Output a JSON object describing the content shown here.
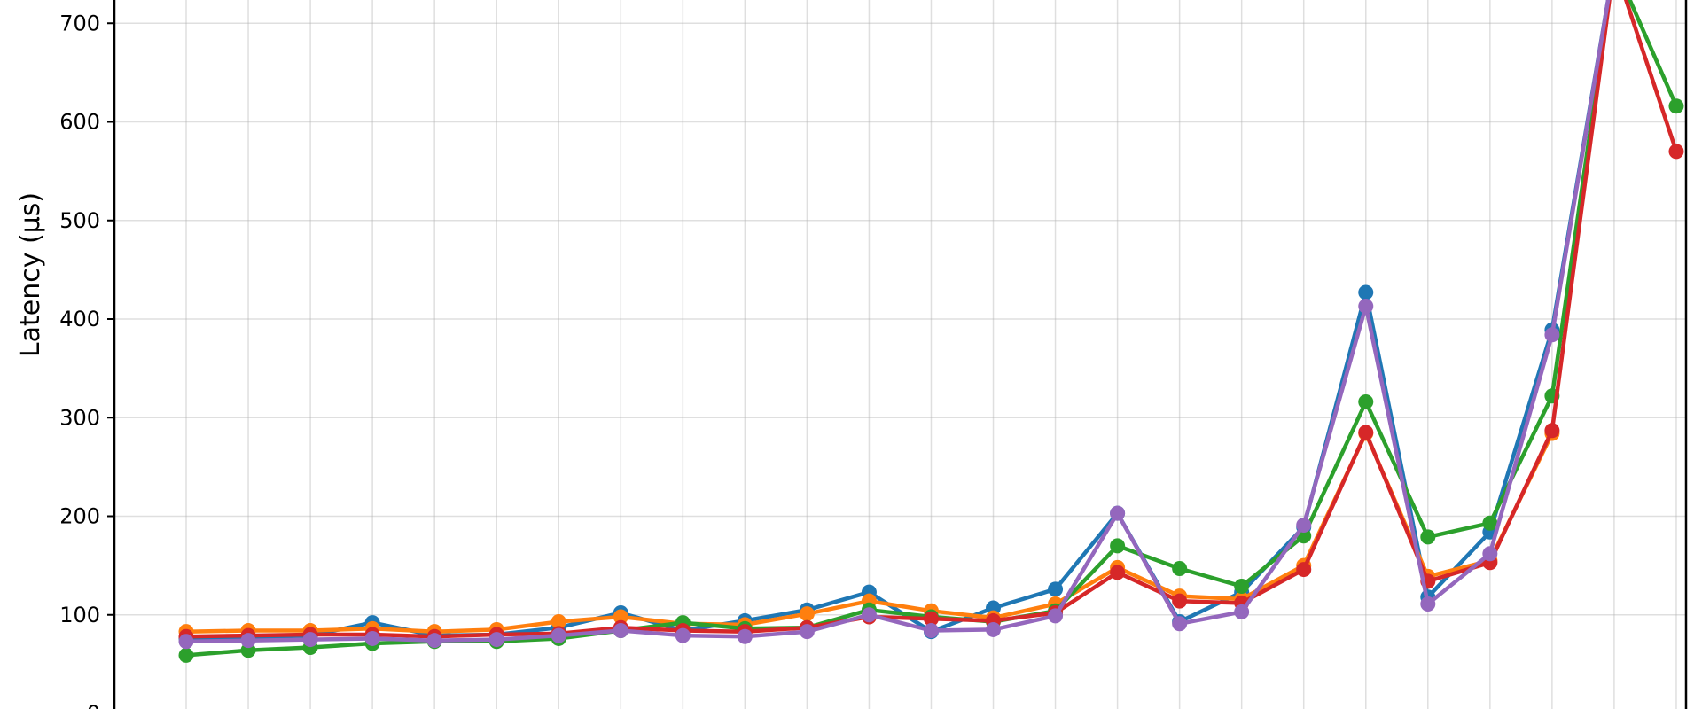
{
  "chart_data": {
    "type": "line",
    "ylabel": "Latency (µs)",
    "ylim": [
      0,
      720
    ],
    "yticks": [
      0,
      100,
      200,
      300,
      400,
      500,
      600,
      700
    ],
    "grid": true,
    "x": [
      1,
      2,
      3,
      4,
      5,
      6,
      7,
      8,
      9,
      10,
      11,
      12,
      13,
      14,
      15,
      16,
      17,
      18,
      19,
      20,
      21,
      22,
      23,
      24,
      25,
      26
    ],
    "series": [
      {
        "color": "#1f77b4",
        "values": [
          76,
          77,
          79,
          92,
          79,
          80,
          87,
          102,
          84,
          94,
          105,
          123,
          83,
          107,
          126,
          203,
          93,
          123,
          189,
          427,
          118,
          184,
          389,
          760,
          null,
          null
        ]
      },
      {
        "color": "#ff7f0e",
        "values": [
          83,
          84,
          84,
          86,
          83,
          85,
          93,
          98,
          91,
          90,
          101,
          114,
          104,
          97,
          111,
          148,
          119,
          116,
          150,
          284,
          139,
          155,
          284,
          null,
          null,
          null
        ]
      },
      {
        "color": "#2ca02c",
        "values": [
          59,
          64,
          67,
          71,
          73,
          73,
          76,
          84,
          92,
          86,
          87,
          105,
          98,
          93,
          104,
          170,
          147,
          129,
          180,
          316,
          179,
          193,
          322,
          760,
          616,
          null
        ]
      },
      {
        "color": "#d62728",
        "values": [
          78,
          79,
          80,
          80,
          78,
          80,
          81,
          87,
          84,
          83,
          87,
          98,
          96,
          94,
          102,
          143,
          114,
          112,
          146,
          285,
          134,
          153,
          287,
          760,
          570,
          null
        ]
      },
      {
        "color": "#9467bd",
        "values": [
          73,
          74,
          75,
          76,
          74,
          75,
          79,
          84,
          79,
          78,
          83,
          100,
          84,
          85,
          99,
          203,
          91,
          103,
          191,
          413,
          111,
          162,
          384,
          760,
          null,
          null
        ]
      }
    ]
  }
}
